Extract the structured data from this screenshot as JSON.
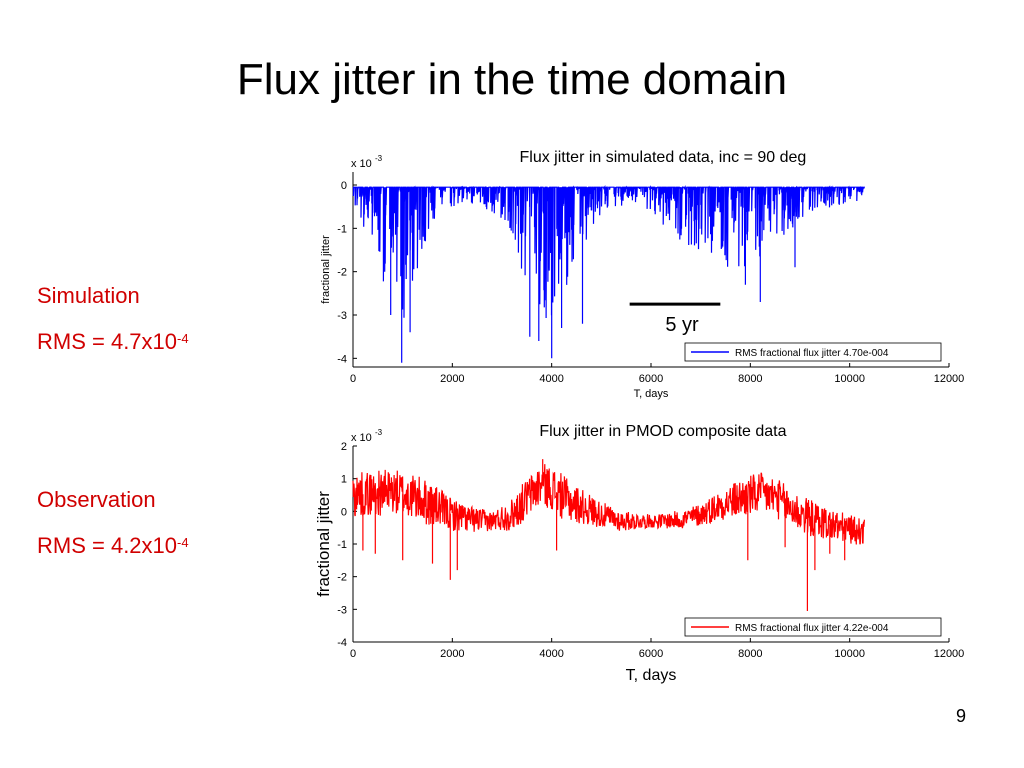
{
  "slide": {
    "title": "Flux jitter in the time domain",
    "page_number": "9"
  },
  "left_panel": {
    "simulation_label": "Simulation",
    "simulation_rms_prefix": "RMS = 4.7x10",
    "simulation_rms_exponent": "-4",
    "observation_label": "Observation",
    "observation_rms_prefix": "RMS = 4.2x10",
    "observation_rms_exponent": "-4"
  },
  "colors": {
    "simulation_series": "#0000ff",
    "observation_series": "#ff0000",
    "side_text": "#d00000"
  },
  "chart_data": [
    {
      "type": "line",
      "title": "Flux jitter in simulated data, inc = 90 deg",
      "xlabel": "T, days",
      "ylabel": "fractional jitter",
      "scale_note": "x 10",
      "scale_exponent": "-3",
      "xlim": [
        0,
        12000
      ],
      "ylim": [
        -4.2,
        0.3
      ],
      "xticks": [
        0,
        2000,
        4000,
        6000,
        8000,
        10000,
        12000
      ],
      "yticks": [
        0,
        -1,
        -2,
        -3,
        -4
      ],
      "grid": false,
      "legend": "bottom-right",
      "annotation": {
        "text": "5 yr",
        "span_days": 1826
      },
      "series": [
        {
          "name": "RMS fractional flux jitter 4.70e-004",
          "color": "#0000ff",
          "x_range": [
            0,
            10300
          ],
          "baseline": -0.05,
          "envelope": [
            [
              0,
              -0.4
            ],
            [
              200,
              -0.9
            ],
            [
              400,
              -1.6
            ],
            [
              600,
              -2.4
            ],
            [
              800,
              -2.8
            ],
            [
              1000,
              -3.2
            ],
            [
              1200,
              -2.4
            ],
            [
              1400,
              -1.6
            ],
            [
              1600,
              -1.1
            ],
            [
              1800,
              -0.7
            ],
            [
              2000,
              -0.5
            ],
            [
              2400,
              -0.4
            ],
            [
              2800,
              -0.6
            ],
            [
              3200,
              -1.2
            ],
            [
              3500,
              -2.3
            ],
            [
              3700,
              -3.0
            ],
            [
              3900,
              -3.2
            ],
            [
              4100,
              -3.0
            ],
            [
              4300,
              -2.6
            ],
            [
              4500,
              -2.0
            ],
            [
              4700,
              -1.3
            ],
            [
              4900,
              -0.8
            ],
            [
              5200,
              -0.5
            ],
            [
              5600,
              -0.4
            ],
            [
              6000,
              -0.6
            ],
            [
              6400,
              -1.1
            ],
            [
              6800,
              -1.5
            ],
            [
              7200,
              -1.8
            ],
            [
              7600,
              -1.9
            ],
            [
              8000,
              -1.8
            ],
            [
              8400,
              -1.4
            ],
            [
              8800,
              -1.0
            ],
            [
              9200,
              -0.7
            ],
            [
              9600,
              -0.5
            ],
            [
              10000,
              -0.35
            ],
            [
              10300,
              -0.3
            ]
          ],
          "spikes": [
            [
              980,
              -4.1
            ],
            [
              760,
              -3.0
            ],
            [
              1150,
              -3.4
            ],
            [
              3560,
              -3.5
            ],
            [
              3740,
              -3.6
            ],
            [
              4000,
              -4.0
            ],
            [
              4200,
              -3.3
            ],
            [
              4620,
              -3.2
            ],
            [
              8200,
              -2.7
            ],
            [
              7900,
              -2.3
            ],
            [
              8900,
              -1.9
            ]
          ]
        }
      ]
    },
    {
      "type": "line",
      "title": "Flux jitter in PMOD composite data",
      "xlabel": "T, days",
      "ylabel": "fractional jitter",
      "scale_note": "x 10",
      "scale_exponent": "-3",
      "xlim": [
        0,
        12000
      ],
      "ylim": [
        -4,
        2
      ],
      "xticks": [
        0,
        2000,
        4000,
        6000,
        8000,
        10000,
        12000
      ],
      "yticks": [
        2,
        1,
        0,
        -1,
        -2,
        -3,
        -4
      ],
      "grid": false,
      "legend": "bottom-right",
      "series": [
        {
          "name": "RMS fractional flux jitter 4.22e-004",
          "color": "#ff0000",
          "x_range": [
            0,
            10300
          ],
          "trend": [
            [
              0,
              0.5
            ],
            [
              400,
              0.55
            ],
            [
              800,
              0.6
            ],
            [
              1200,
              0.45
            ],
            [
              1600,
              0.2
            ],
            [
              2000,
              -0.1
            ],
            [
              2400,
              -0.25
            ],
            [
              2800,
              -0.3
            ],
            [
              3200,
              -0.1
            ],
            [
              3500,
              0.4
            ],
            [
              3800,
              0.85
            ],
            [
              4000,
              0.7
            ],
            [
              4300,
              0.35
            ],
            [
              4600,
              0.15
            ],
            [
              5000,
              -0.1
            ],
            [
              5400,
              -0.3
            ],
            [
              5800,
              -0.3
            ],
            [
              6200,
              -0.3
            ],
            [
              6600,
              -0.25
            ],
            [
              7000,
              -0.1
            ],
            [
              7400,
              0.2
            ],
            [
              7800,
              0.4
            ],
            [
              8200,
              0.55
            ],
            [
              8500,
              0.45
            ],
            [
              8800,
              0.1
            ],
            [
              9200,
              -0.2
            ],
            [
              9600,
              -0.4
            ],
            [
              10000,
              -0.55
            ],
            [
              10300,
              -0.65
            ]
          ],
          "amplitude": [
            [
              0,
              0.7
            ],
            [
              1500,
              0.7
            ],
            [
              2000,
              0.5
            ],
            [
              2800,
              0.3
            ],
            [
              3400,
              0.6
            ],
            [
              4200,
              0.7
            ],
            [
              5000,
              0.4
            ],
            [
              6000,
              0.2
            ],
            [
              7000,
              0.35
            ],
            [
              8000,
              0.65
            ],
            [
              9000,
              0.6
            ],
            [
              10300,
              0.4
            ]
          ],
          "spikes": [
            [
              200,
              -1.2
            ],
            [
              450,
              -1.3
            ],
            [
              1000,
              -1.5
            ],
            [
              1600,
              -1.6
            ],
            [
              1960,
              -2.1
            ],
            [
              2100,
              -1.8
            ],
            [
              3820,
              1.6
            ],
            [
              4100,
              -1.2
            ],
            [
              7950,
              -1.5
            ],
            [
              8700,
              -1.1
            ],
            [
              9150,
              -3.05
            ],
            [
              9300,
              -1.8
            ],
            [
              9600,
              -1.3
            ],
            [
              9900,
              -1.5
            ]
          ]
        }
      ]
    }
  ]
}
